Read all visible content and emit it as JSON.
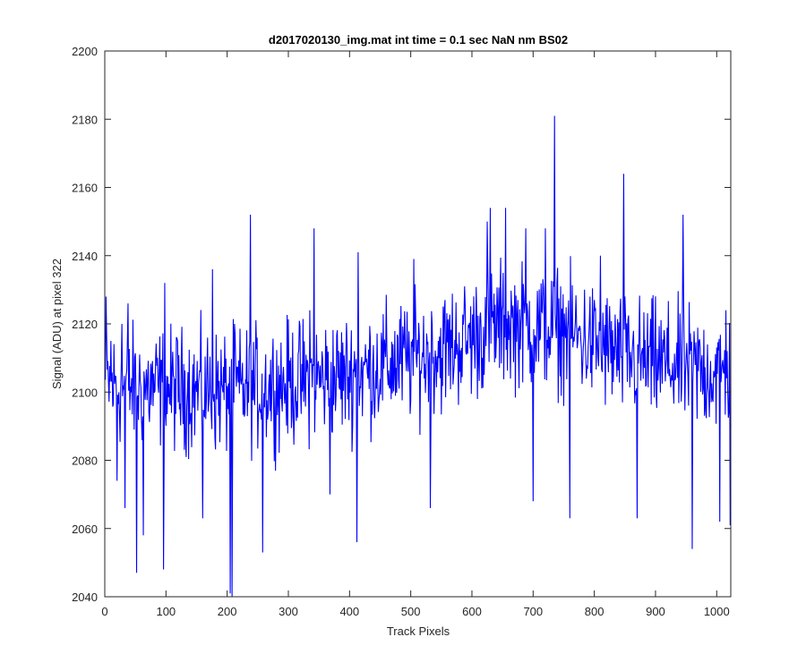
{
  "chart_data": {
    "type": "line",
    "title": "d2017020130_img.mat int time = 0.1 sec  NaN nm BS02",
    "xlabel": "Track Pixels",
    "ylabel": "Signal (ADU) at pixel 322",
    "xlim": [
      0,
      1023
    ],
    "ylim": [
      2040,
      2200
    ],
    "xticks": [
      0,
      100,
      200,
      300,
      400,
      500,
      600,
      700,
      800,
      900,
      1000
    ],
    "yticks": [
      2040,
      2060,
      2080,
      2100,
      2120,
      2140,
      2160,
      2180,
      2200
    ],
    "grid": false,
    "legend": "none",
    "series": [
      {
        "color": "#0000ff",
        "x_start": 1,
        "x_step": 1,
        "trend_points": [
          [
            0,
            2102
          ],
          [
            200,
            2100
          ],
          [
            400,
            2105
          ],
          [
            550,
            2112
          ],
          [
            650,
            2120
          ],
          [
            750,
            2118
          ],
          [
            850,
            2110
          ],
          [
            1023,
            2105
          ]
        ],
        "spikes": [
          [
            2,
            2128
          ],
          [
            10,
            2115
          ],
          [
            20,
            2074
          ],
          [
            28,
            2120
          ],
          [
            33,
            2066
          ],
          [
            38,
            2126
          ],
          [
            52,
            2047
          ],
          [
            63,
            2058
          ],
          [
            96,
            2048
          ],
          [
            98,
            2132
          ],
          [
            160,
            2063
          ],
          [
            176,
            2136
          ],
          [
            205,
            2041
          ],
          [
            208,
            2040
          ],
          [
            212,
            2120
          ],
          [
            238,
            2152
          ],
          [
            258,
            2053
          ],
          [
            335,
            2124
          ],
          [
            342,
            2148
          ],
          [
            368,
            2070
          ],
          [
            408,
            2112
          ],
          [
            412,
            2056
          ],
          [
            414,
            2141
          ],
          [
            505,
            2139
          ],
          [
            532,
            2066
          ],
          [
            625,
            2150
          ],
          [
            630,
            2154
          ],
          [
            655,
            2154
          ],
          [
            688,
            2148
          ],
          [
            700,
            2068
          ],
          [
            720,
            2148
          ],
          [
            735,
            2181
          ],
          [
            760,
            2154
          ],
          [
            760,
            2063
          ],
          [
            810,
            2140
          ],
          [
            848,
            2164
          ],
          [
            870,
            2063
          ],
          [
            945,
            2152
          ],
          [
            960,
            2054
          ],
          [
            1005,
            2062
          ],
          [
            1015,
            2124
          ],
          [
            1022,
            2061
          ]
        ],
        "noise_amplitude": 22,
        "n_points": 1023
      }
    ]
  }
}
